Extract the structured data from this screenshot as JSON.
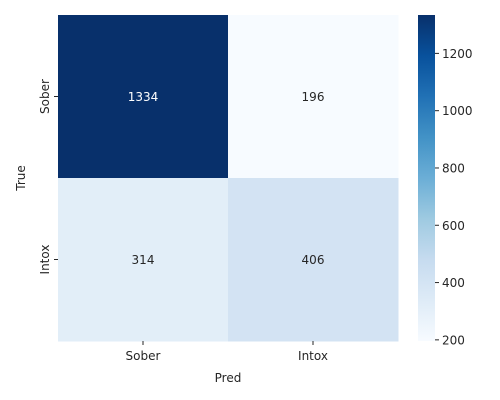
{
  "chart_data": {
    "type": "heatmap",
    "xlabel": "Pred",
    "ylabel": "True",
    "x_categories": [
      "Sober",
      "Intox"
    ],
    "y_categories": [
      "Sober",
      "Intox"
    ],
    "values": [
      [
        1334,
        196
      ],
      [
        314,
        406
      ]
    ],
    "colorbar": {
      "ticks": [
        200,
        400,
        600,
        800,
        1000,
        1200
      ],
      "range": [
        196,
        1334
      ],
      "colors": [
        "#f7fbff",
        "#deebf7",
        "#c6dbef",
        "#9ecae1",
        "#6baed6",
        "#4292c6",
        "#2171b5",
        "#08519c",
        "#08306b"
      ]
    }
  }
}
